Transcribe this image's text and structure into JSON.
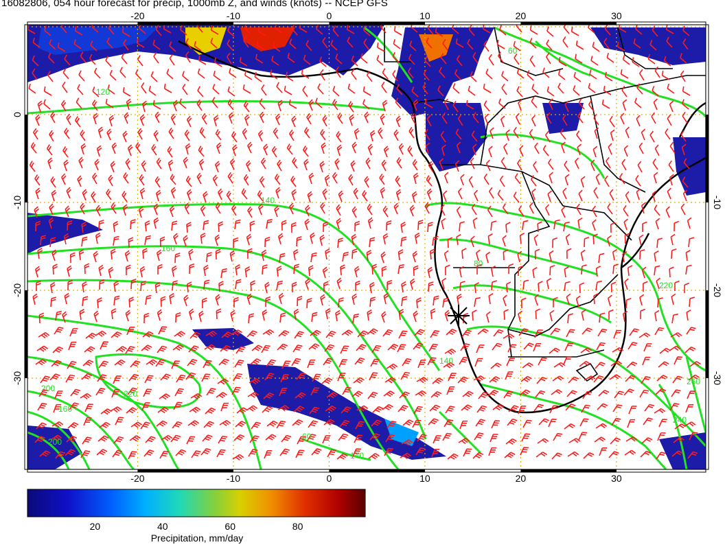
{
  "title": "16082806, 054 hour forecast for precip, 1000mb Z, and winds (knots) -- NCEP GFS",
  "map": {
    "x_ticks_top": [
      "-20",
      "-10",
      "0",
      "10",
      "20",
      "30"
    ],
    "x_ticks_bottom": [
      "-20",
      "-10",
      "0",
      "10",
      "20",
      "30"
    ],
    "y_ticks_left": [
      "0",
      "-10",
      "-20",
      "-30"
    ],
    "y_ticks_right": [
      "-10",
      "-20",
      "-30"
    ],
    "contour_labels": [
      "120",
      "140",
      "160",
      "200",
      "220",
      "60",
      "80",
      "140",
      "160",
      "200",
      "240",
      "260",
      "220",
      "60",
      "140"
    ],
    "station_marker": "star-marker",
    "colors": {
      "precip_low": "#1a1aa8",
      "precip_high": "#8b0000",
      "contour": "#22e022",
      "wind_barb": "#ff1a1a",
      "grid": "#e0b000",
      "coast": "#000000"
    }
  },
  "colorbar": {
    "ticks": [
      "20",
      "40",
      "60",
      "80"
    ],
    "label": "Precipitation, mm/day",
    "range": [
      0,
      100
    ]
  }
}
